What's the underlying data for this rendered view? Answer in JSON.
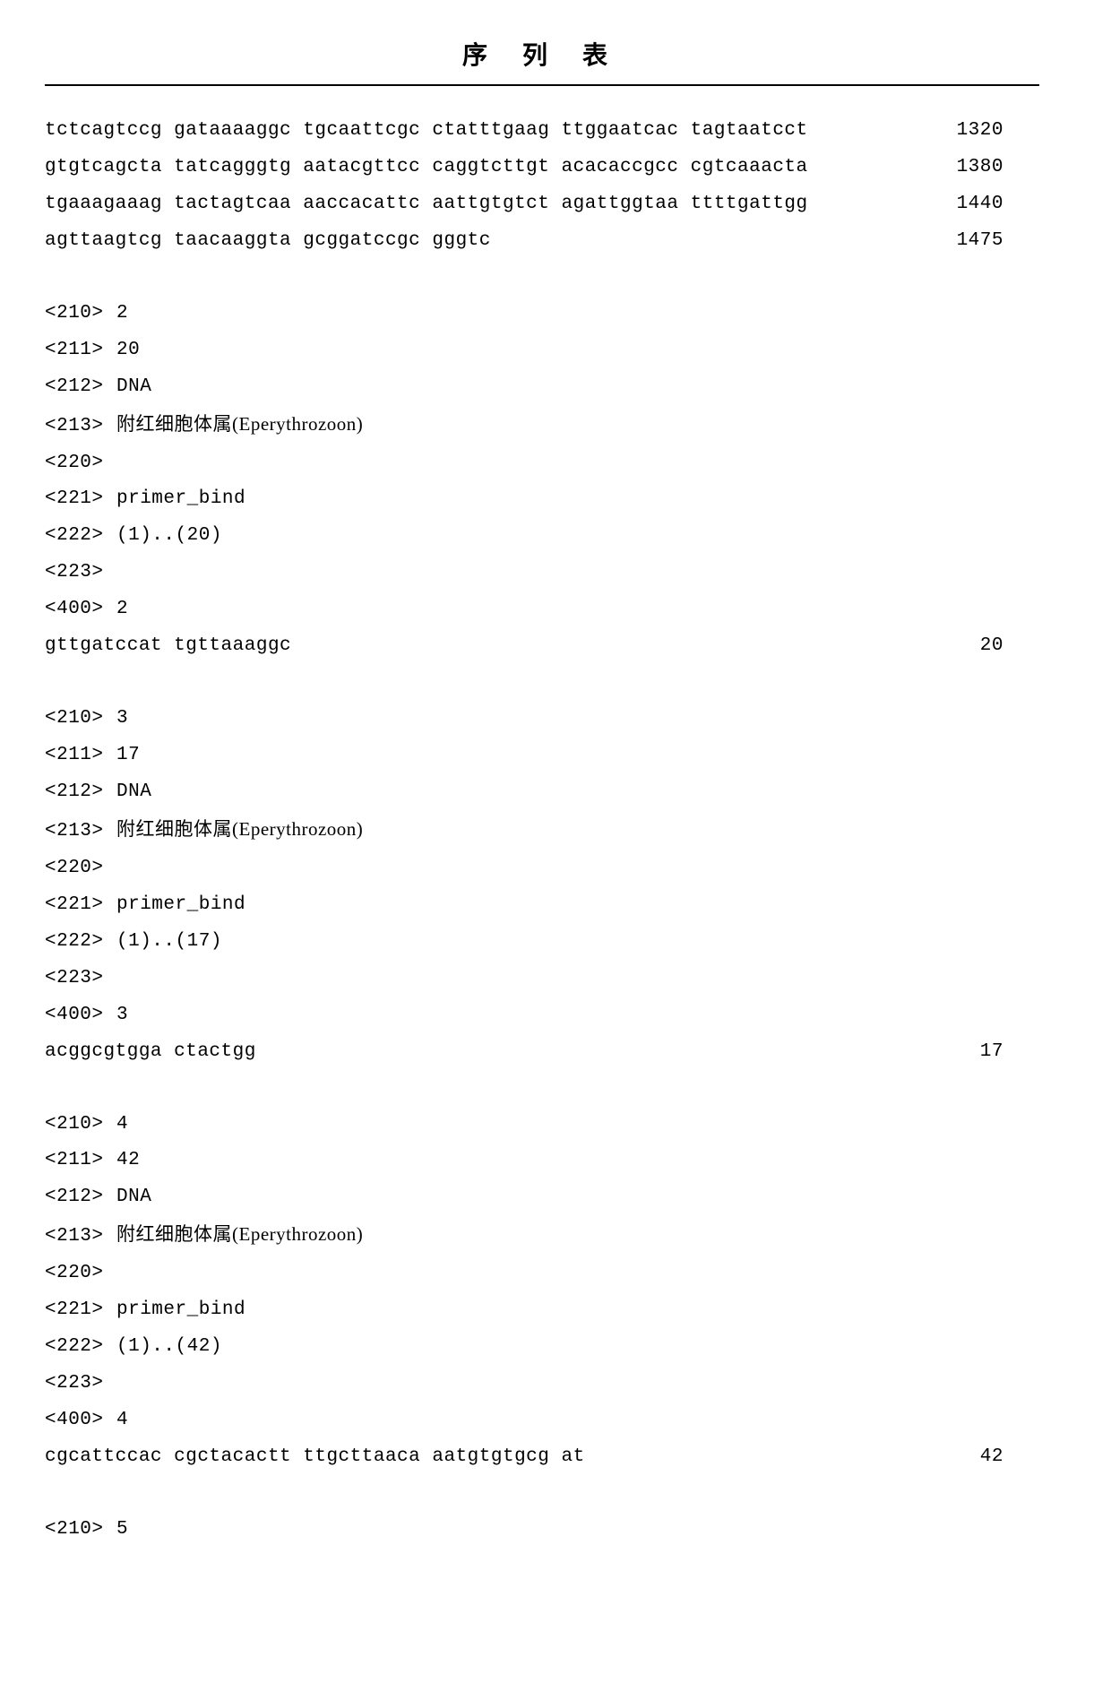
{
  "title": "序 列 表",
  "seq_block_1": {
    "lines": [
      {
        "text": "tctcagtccg gataaaaggc tgcaattcgc ctatttgaag ttggaatcac tagtaatcct",
        "num": "1320"
      },
      {
        "text": "gtgtcagcta tatcagggtg aatacgttcc caggtcttgt acacaccgcc cgtcaaacta",
        "num": "1380"
      },
      {
        "text": "tgaaagaaag tactagtcaa aaccacattc aattgtgtct agattggtaa ttttgattgg",
        "num": "1440"
      },
      {
        "text": "agttaagtcg taacaaggta gcggatccgc gggtc",
        "num": "1475"
      }
    ]
  },
  "entries": [
    {
      "meta": [
        {
          "tag": "<210>",
          "val": "2"
        },
        {
          "tag": "<211>",
          "val": "20"
        },
        {
          "tag": "<212>",
          "val": "DNA"
        },
        {
          "tag": "<213>",
          "val": "附红细胞体属(Eperythrozoon)",
          "mixed": true
        },
        {
          "tag": "<220>",
          "val": ""
        },
        {
          "tag": "<221>",
          "val": "primer_bind"
        },
        {
          "tag": "<222>",
          "val": "(1)..(20)"
        },
        {
          "tag": "<223>",
          "val": ""
        },
        {
          "tag": "<400>",
          "val": "2"
        }
      ],
      "seq": {
        "text": "gttgatccat tgttaaaggc",
        "num": "20"
      }
    },
    {
      "meta": [
        {
          "tag": "<210>",
          "val": "3"
        },
        {
          "tag": "<211>",
          "val": "17"
        },
        {
          "tag": "<212>",
          "val": "DNA"
        },
        {
          "tag": "<213>",
          "val": "附红细胞体属(Eperythrozoon)",
          "mixed": true
        },
        {
          "tag": "<220>",
          "val": ""
        },
        {
          "tag": "<221>",
          "val": "primer_bind"
        },
        {
          "tag": "<222>",
          "val": "(1)..(17)"
        },
        {
          "tag": "<223>",
          "val": ""
        },
        {
          "tag": "<400>",
          "val": "3"
        }
      ],
      "seq": {
        "text": "acggcgtgga ctactgg",
        "num": "17"
      }
    },
    {
      "meta": [
        {
          "tag": "<210>",
          "val": "4"
        },
        {
          "tag": "<211>",
          "val": "42"
        },
        {
          "tag": "<212>",
          "val": "DNA"
        },
        {
          "tag": "<213>",
          "val": "附红细胞体属(Eperythrozoon)",
          "mixed": true
        },
        {
          "tag": "<220>",
          "val": ""
        },
        {
          "tag": "<221>",
          "val": "primer_bind"
        },
        {
          "tag": "<222>",
          "val": "(1)..(42)"
        },
        {
          "tag": "<223>",
          "val": ""
        },
        {
          "tag": "<400>",
          "val": "4"
        }
      ],
      "seq": {
        "text": "cgcattccac cgctacactt ttgcttaaca aatgtgtgcg at",
        "num": "42"
      }
    }
  ],
  "trailing": {
    "tag": "<210>",
    "val": "5"
  }
}
